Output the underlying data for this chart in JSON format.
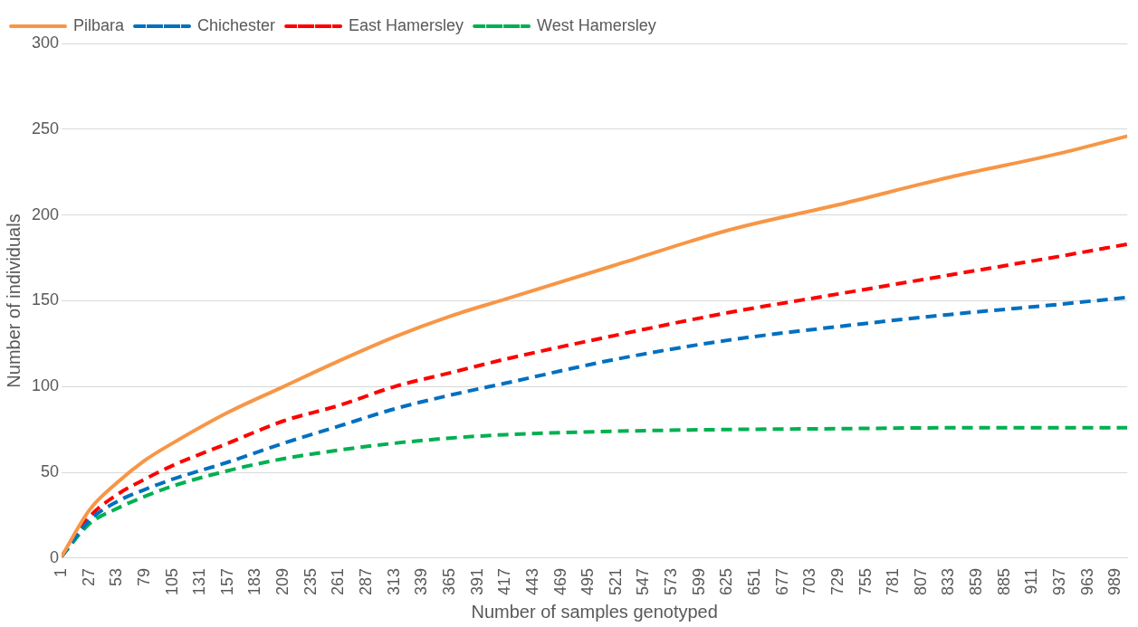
{
  "chart_data": {
    "type": "line",
    "xlabel": "Number of samples genotyped",
    "ylabel": "Number of individuals",
    "x": [
      1,
      27,
      53,
      79,
      105,
      157,
      209,
      261,
      313,
      365,
      417,
      521,
      625,
      729,
      833,
      937,
      1000
    ],
    "xlim": [
      1,
      1000
    ],
    "xticks": [
      1,
      27,
      53,
      79,
      105,
      131,
      157,
      183,
      209,
      235,
      261,
      287,
      313,
      339,
      365,
      391,
      417,
      443,
      469,
      495,
      521,
      547,
      573,
      599,
      625,
      651,
      677,
      703,
      729,
      755,
      781,
      807,
      833,
      859,
      885,
      911,
      937,
      963,
      989
    ],
    "ylim": [
      0,
      300
    ],
    "yticks": [
      0,
      50,
      100,
      150,
      200,
      250,
      300
    ],
    "grid": "y",
    "legend": "top left",
    "marker": "none",
    "series": [
      {
        "name": "Pilbara",
        "color": "#f79646",
        "line_style": "solid",
        "values": [
          1,
          28,
          44,
          57,
          67,
          85,
          100,
          115,
          129,
          141,
          151,
          171,
          191,
          206,
          222,
          236,
          246
        ]
      },
      {
        "name": "Chichester",
        "color": "#0070c0",
        "line_style": "dashed",
        "values": [
          1,
          22,
          33,
          40,
          46,
          56,
          67,
          77,
          87,
          95,
          102,
          116,
          127,
          135,
          142,
          148,
          152
        ]
      },
      {
        "name": "East Hamersley",
        "color": "#ff0000",
        "line_style": "dashed",
        "values": [
          1,
          24,
          37,
          46,
          54,
          67,
          80,
          89,
          100,
          108,
          116,
          130,
          143,
          154,
          165,
          176,
          183
        ]
      },
      {
        "name": "West Hamersley",
        "color": "#00b050",
        "line_style": "dashed",
        "values": [
          1,
          20,
          29,
          36,
          42,
          51,
          58,
          63,
          67,
          70,
          72,
          74,
          75,
          75.5,
          76,
          76,
          76
        ]
      }
    ]
  }
}
